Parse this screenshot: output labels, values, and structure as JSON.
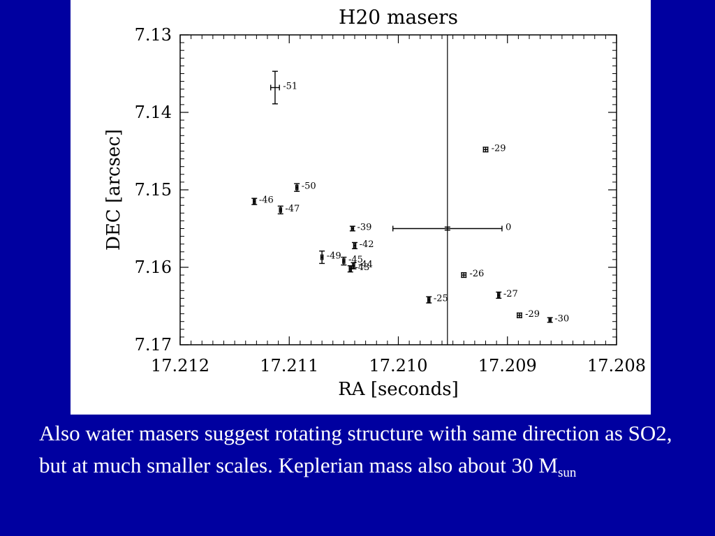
{
  "chart_data": {
    "type": "scatter",
    "title": "H20 masers",
    "xlabel": "RA [seconds]",
    "ylabel": "DEC [arcsec]",
    "xlim": [
      17.212,
      17.208
    ],
    "ylim": [
      7.17,
      7.13
    ],
    "x_reversed": true,
    "y_reversed": true,
    "x_ticks": [
      "17.212",
      "17.211",
      "17.210",
      "17.209",
      "17.208"
    ],
    "x_tick_values": [
      17.212,
      17.211,
      17.21,
      17.209,
      17.208
    ],
    "y_ticks": [
      "7.13",
      "7.14",
      "7.15",
      "7.16",
      "7.17"
    ],
    "y_tick_values": [
      7.13,
      7.14,
      7.15,
      7.16,
      7.17
    ],
    "vertical_line_x": 17.20955,
    "points": [
      {
        "label": "-51",
        "x": 17.21113,
        "y": 7.1368,
        "xerr": 4e-05,
        "yerr": 0.0021
      },
      {
        "label": "-29",
        "x": 17.2092,
        "y": 7.1448,
        "xerr": 2e-05,
        "yerr": 0.0003
      },
      {
        "label": "-50",
        "x": 17.21093,
        "y": 7.1497,
        "xerr": 1e-05,
        "yerr": 0.0005
      },
      {
        "label": "-46",
        "x": 17.21132,
        "y": 7.1515,
        "xerr": 1e-05,
        "yerr": 0.0004
      },
      {
        "label": "-47",
        "x": 17.21108,
        "y": 7.1526,
        "xerr": 1e-05,
        "yerr": 0.0005
      },
      {
        "label": "-39",
        "x": 17.21042,
        "y": 7.155,
        "xerr": 1e-05,
        "yerr": 0.0003
      },
      {
        "label": "0",
        "x": 17.20955,
        "y": 7.155,
        "xerr": 0.0005,
        "yerr": 0.0002
      },
      {
        "label": "-42",
        "x": 17.2104,
        "y": 7.1572,
        "xerr": 1e-05,
        "yerr": 0.0004
      },
      {
        "label": "-49",
        "x": 17.2107,
        "y": 7.1587,
        "xerr": 1e-05,
        "yerr": 0.0008
      },
      {
        "label": "-45",
        "x": 17.2105,
        "y": 7.1592,
        "xerr": 1e-05,
        "yerr": 0.0005
      },
      {
        "label": "-44",
        "x": 17.21041,
        "y": 7.1598,
        "xerr": 1e-05,
        "yerr": 0.0004
      },
      {
        "label": "-43",
        "x": 17.21044,
        "y": 7.1602,
        "xerr": 1e-05,
        "yerr": 0.0004
      },
      {
        "label": "-26",
        "x": 17.2094,
        "y": 7.161,
        "xerr": 2e-05,
        "yerr": 0.0003
      },
      {
        "label": "-25",
        "x": 17.20972,
        "y": 7.1642,
        "xerr": 1e-05,
        "yerr": 0.0004
      },
      {
        "label": "-27",
        "x": 17.20908,
        "y": 7.1636,
        "xerr": 1e-05,
        "yerr": 0.0004
      },
      {
        "label": "-29",
        "x": 17.20889,
        "y": 7.1662,
        "xerr": 2e-05,
        "yerr": 0.0003
      },
      {
        "label": "-30",
        "x": 17.20861,
        "y": 7.1668,
        "xerr": 1e-05,
        "yerr": 0.0003
      }
    ]
  },
  "caption": {
    "text": "Also water masers suggest rotating structure with same direction as SO2, but at much smaller scales. Keplerian mass also about 30 M",
    "subscript": "sun"
  }
}
